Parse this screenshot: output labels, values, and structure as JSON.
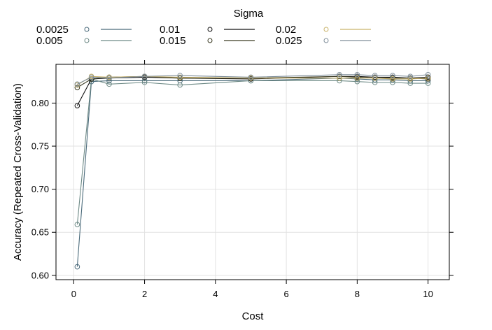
{
  "chart_data": {
    "type": "line",
    "title": "",
    "xlabel": "Cost",
    "ylabel": "Accuracy (Repeated Cross-Validation)",
    "xlim": [
      -0.5,
      10.6
    ],
    "ylim": [
      0.595,
      0.845
    ],
    "xticks": [
      0,
      2,
      4,
      6,
      8,
      10
    ],
    "yticks": [
      0.6,
      0.65,
      0.7,
      0.75,
      0.8
    ],
    "grid": true,
    "legend_title": "Sigma",
    "legend_position": "top",
    "x": [
      0.1,
      0.5,
      1,
      2,
      3,
      5,
      7.5,
      8,
      8.5,
      9,
      9.5,
      10
    ],
    "series": [
      {
        "name": "0.0025",
        "color": "#4a6a7a",
        "values": [
          0.61,
          0.825,
          0.826,
          0.826,
          0.826,
          0.826,
          0.829,
          0.828,
          0.827,
          0.827,
          0.826,
          0.826
        ]
      },
      {
        "name": "0.005",
        "color": "#6e8a86",
        "values": [
          0.659,
          0.828,
          0.822,
          0.824,
          0.821,
          0.826,
          0.826,
          0.825,
          0.824,
          0.824,
          0.823,
          0.823
        ]
      },
      {
        "name": "0.01",
        "color": "#111111",
        "values": [
          0.797,
          0.828,
          0.829,
          0.83,
          0.829,
          0.828,
          0.831,
          0.831,
          0.83,
          0.83,
          0.829,
          0.83
        ]
      },
      {
        "name": "0.015",
        "color": "#3a3a22",
        "values": [
          0.818,
          0.828,
          0.83,
          0.831,
          0.829,
          0.829,
          0.831,
          0.83,
          0.829,
          0.829,
          0.829,
          0.828
        ]
      },
      {
        "name": "0.02",
        "color": "#c9b36b",
        "values": [
          0.821,
          0.831,
          0.83,
          0.831,
          0.83,
          0.829,
          0.829,
          0.829,
          0.829,
          0.828,
          0.828,
          0.829
        ]
      },
      {
        "name": "0.025",
        "color": "#7f8e99",
        "values": [
          0.822,
          0.83,
          0.829,
          0.831,
          0.832,
          0.83,
          0.833,
          0.833,
          0.832,
          0.832,
          0.831,
          0.833
        ]
      }
    ]
  }
}
